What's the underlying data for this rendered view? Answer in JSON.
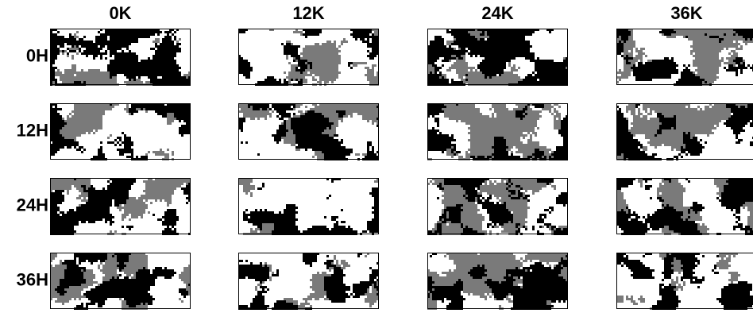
{
  "columns": [
    "0K",
    "12K",
    "24K",
    "36K"
  ],
  "rows": [
    "0H",
    "12H",
    "24H",
    "36H"
  ]
}
